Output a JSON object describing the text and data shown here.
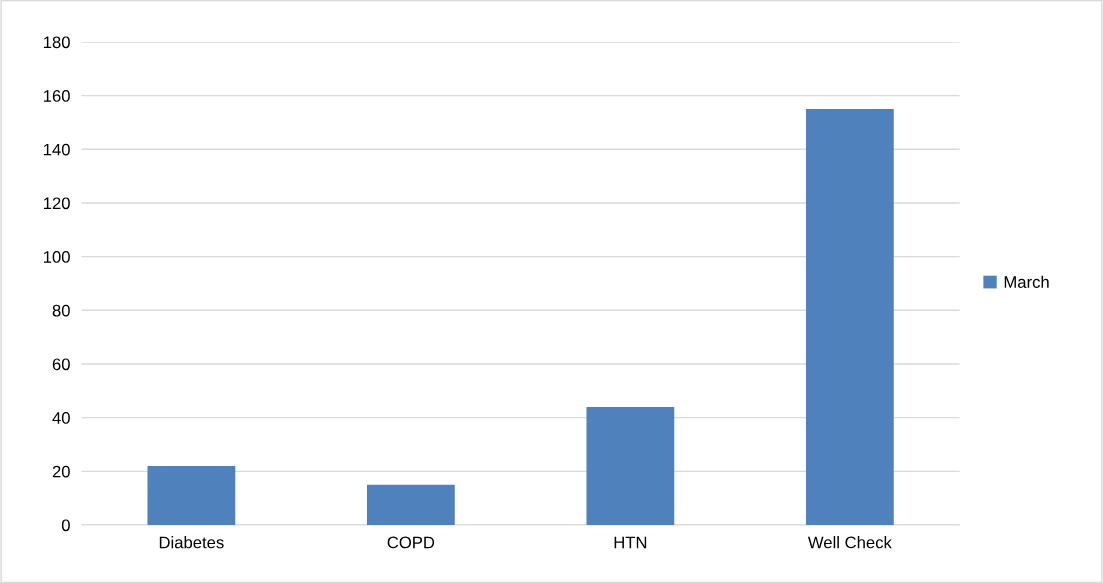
{
  "chart_data": {
    "type": "bar",
    "categories": [
      "Diabetes",
      "COPD",
      "HTN",
      "Well Check"
    ],
    "series": [
      {
        "name": "March",
        "color": "#4f81bd",
        "values": [
          22,
          15,
          44,
          155
        ]
      }
    ],
    "ylim": [
      0,
      180
    ],
    "yticks": [
      0,
      20,
      40,
      60,
      80,
      100,
      120,
      140,
      160,
      180
    ],
    "grid": "y",
    "legend": "right"
  }
}
